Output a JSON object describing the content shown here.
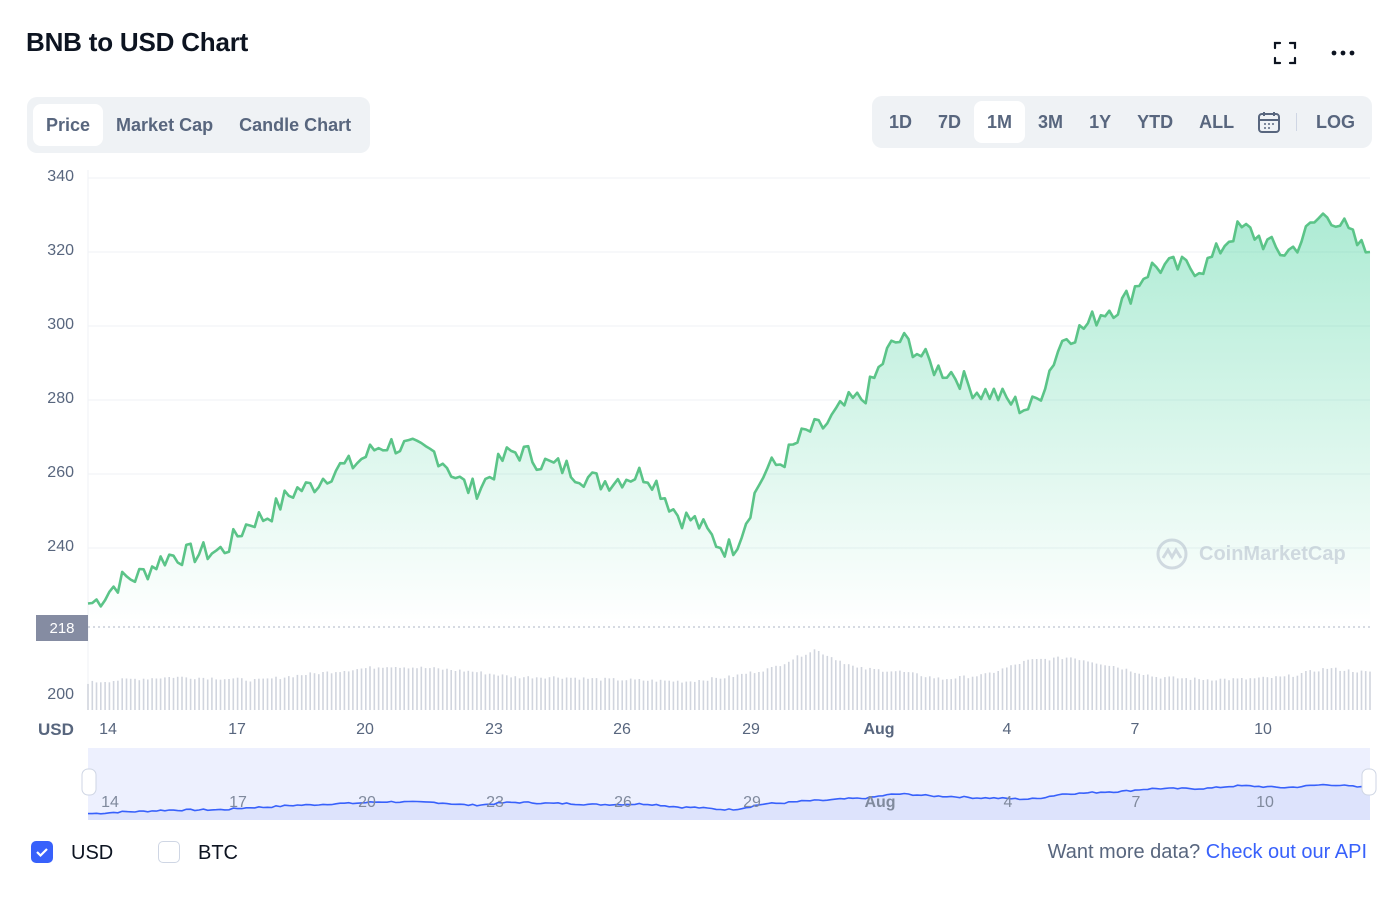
{
  "header": {
    "title": "BNB to USD Chart"
  },
  "tabs": [
    {
      "label": "Price",
      "active": true
    },
    {
      "label": "Market Cap",
      "active": false
    },
    {
      "label": "Candle Chart",
      "active": false
    }
  ],
  "ranges": [
    {
      "label": "1D",
      "active": false
    },
    {
      "label": "7D",
      "active": false
    },
    {
      "label": "1M",
      "active": true
    },
    {
      "label": "3M",
      "active": false
    },
    {
      "label": "1Y",
      "active": false
    },
    {
      "label": "YTD",
      "active": false
    },
    {
      "label": "ALL",
      "active": false
    }
  ],
  "log_label": "LOG",
  "icons": {
    "fullscreen": "fullscreen-icon",
    "more": "more-icon",
    "calendar": "calendar-icon"
  },
  "colors": {
    "line": "#5bc488",
    "fill": "#16c784",
    "brush": "#3861fb",
    "brush_bg": "#edf0fe"
  },
  "chart_data": {
    "type": "area",
    "title": "BNB to USD Chart",
    "ylabel": "USD",
    "y_ticks": [
      "340",
      "320",
      "300",
      "280",
      "260",
      "240",
      "200"
    ],
    "ylim": [
      220,
      340
    ],
    "current_price_label": "218",
    "x_tick_labels": [
      "14",
      "17",
      "20",
      "23",
      "26",
      "29",
      "Aug",
      "4",
      "7",
      "10"
    ],
    "x": [
      "Jul 13",
      "Jul 14",
      "Jul 15",
      "Jul 16",
      "Jul 17",
      "Jul 18",
      "Jul 19",
      "Jul 20",
      "Jul 21",
      "Jul 22",
      "Jul 23",
      "Jul 24",
      "Jul 25",
      "Jul 26",
      "Jul 27",
      "Jul 28",
      "Jul 29",
      "Jul 30",
      "Jul 31",
      "Aug 1",
      "Aug 2",
      "Aug 3",
      "Aug 4",
      "Aug 5",
      "Aug 6",
      "Aug 7",
      "Aug 8",
      "Aug 9",
      "Aug 10",
      "Aug 11",
      "Aug 12"
    ],
    "series": [
      {
        "values": [
          225,
          232,
          238,
          239,
          248,
          256,
          262,
          268,
          266,
          256,
          266,
          262,
          258,
          260,
          248,
          240,
          262,
          272,
          280,
          296,
          288,
          282,
          278,
          298,
          305,
          316,
          316,
          326,
          320,
          330,
          320
        ]
      },
      {
        "values": [
          0.25,
          0.28,
          0.3,
          0.29,
          0.27,
          0.32,
          0.36,
          0.4,
          0.38,
          0.35,
          0.3,
          0.3,
          0.28,
          0.27,
          0.26,
          0.3,
          0.38,
          0.55,
          0.38,
          0.35,
          0.28,
          0.32,
          0.45,
          0.48,
          0.4,
          0.3,
          0.28,
          0.28,
          0.3,
          0.38,
          0.34
        ]
      }
    ],
    "grid": true,
    "watermark": "CoinMarketCap"
  },
  "footer": {
    "currencies": [
      {
        "label": "USD",
        "checked": true
      },
      {
        "label": "BTC",
        "checked": false
      }
    ],
    "more_text": "Want more data? ",
    "api_link": "Check out our API"
  }
}
